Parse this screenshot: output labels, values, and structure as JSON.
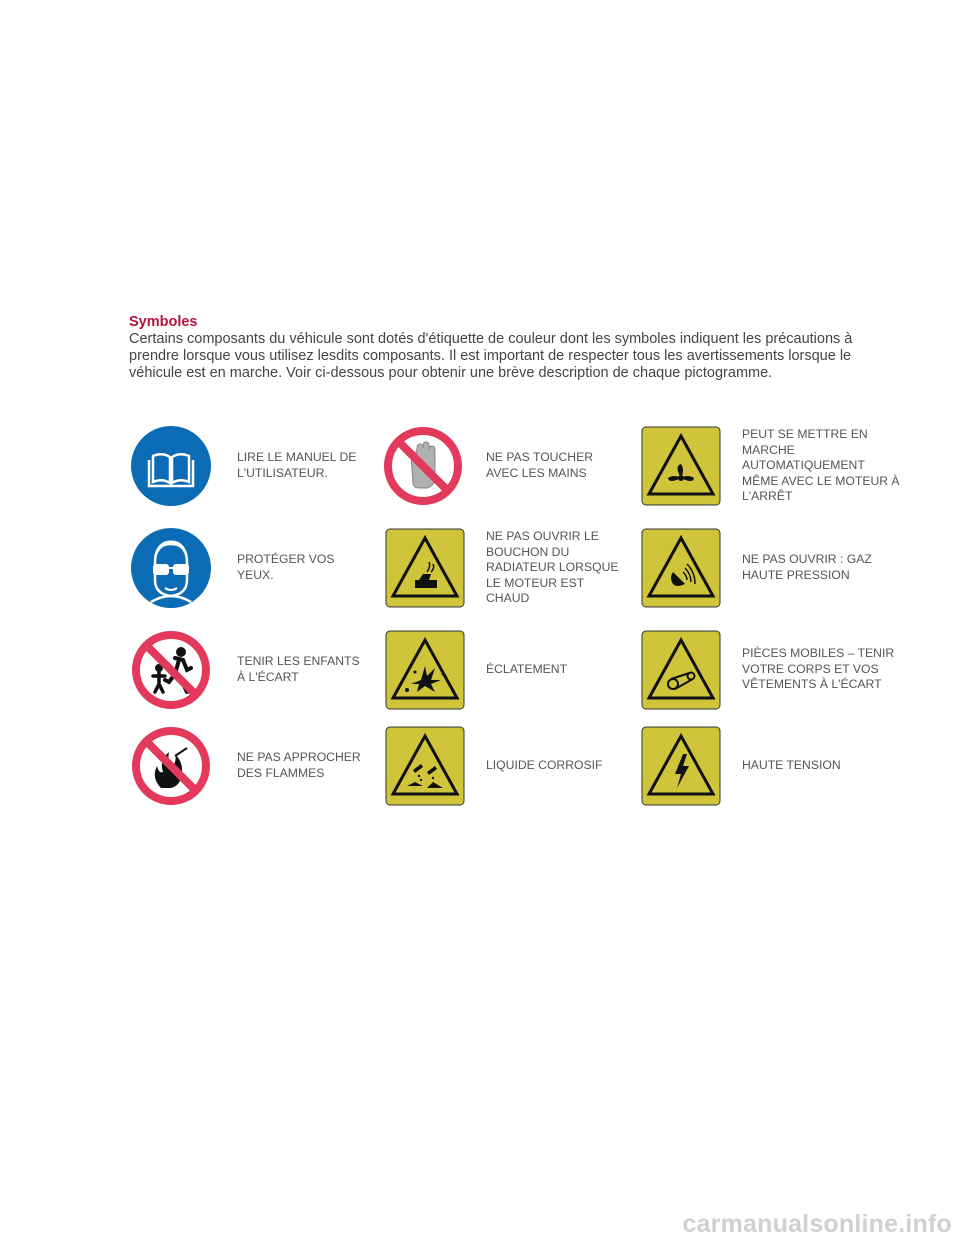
{
  "header": {
    "title": "Symboles",
    "intro": "Certains composants du véhicule sont dotés d'étiquette de couleur dont les symboles indiquent les précautions à prendre lorsque vous utilisez lesdits composants. Il est important de respecter tous les avertissements lorsque le véhicule est en marche. Voir ci-dessous pour obtenir une brève description de chaque pictogramme."
  },
  "colors": {
    "title_red": "#b5123e",
    "mandatory_blue": "#0b6cb5",
    "prohibition_red": "#e3395a",
    "warning_yellow": "#cfc43a"
  },
  "symbols": {
    "read_manual": {
      "icon": "read-manual-icon",
      "caption": "LIRE LE MANUEL DE\nL'UTILISATEUR."
    },
    "no_touch": {
      "icon": "no-touch-hand-icon",
      "caption": "NE PAS TOUCHER\nAVEC LES MAINS"
    },
    "auto_fan": {
      "icon": "fan-warning-icon",
      "caption": "PEUT SE METTRE EN\nMARCHE\nAUTOMATIQUEMENT\nMÊME AVEC LE MOTEUR À\nL'ARRÊT"
    },
    "eye_protect": {
      "icon": "eye-protection-icon",
      "caption": "PROTÉGER VOS\nYEUX."
    },
    "radiator_cap": {
      "icon": "radiator-cap-warning-icon",
      "caption": "NE PAS OUVRIR LE\nBOUCHON DU\nRADIATEUR LORSQUE\nLE MOTEUR EST\nCHAUD"
    },
    "high_pressure": {
      "icon": "high-pressure-gas-icon",
      "caption": "NE PAS OUVRIR : GAZ\nHAUTE PRESSION"
    },
    "children": {
      "icon": "keep-children-away-icon",
      "caption": "TENIR LES ENFANTS\nÀ L'ÉCART"
    },
    "explosion": {
      "icon": "explosion-warning-icon",
      "caption": "ÉCLATEMENT"
    },
    "moving_parts": {
      "icon": "moving-parts-warning-icon",
      "caption": "PIÈCES MOBILES – TENIR\nVOTRE CORPS ET VOS\nVÊTEMENTS À L'ÉCART"
    },
    "no_flames": {
      "icon": "no-flames-icon",
      "caption": "NE PAS APPROCHER\nDES FLAMMES"
    },
    "corrosive": {
      "icon": "corrosive-liquid-icon",
      "caption": "LIQUIDE CORROSIF"
    },
    "high_voltage": {
      "icon": "high-voltage-icon",
      "caption": "HAUTE TENSION"
    }
  },
  "watermark": "carmanualsonline.info"
}
